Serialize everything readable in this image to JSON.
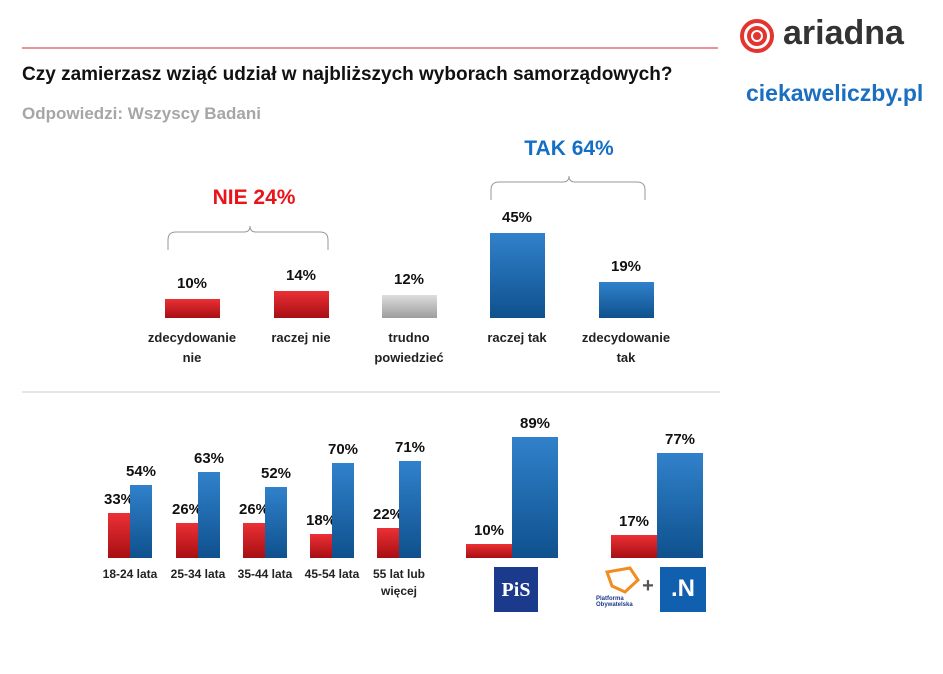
{
  "header": {
    "brand": "ariadna",
    "site": "ciekaweliczby.pl"
  },
  "chart_data": [
    {
      "type": "bar",
      "title": "Czy zamierzasz wziąć udział w najbliższych wyborach samorządowych?",
      "subtitle": "Odpowiedzi: Wszyscy Badani",
      "categories": [
        "zdecydowanie nie",
        "raczej nie",
        "trudno powiedzieć",
        "raczej tak",
        "zdecydowanie tak"
      ],
      "values": [
        10,
        14,
        12,
        45,
        19
      ],
      "value_labels": [
        "10%",
        "14%",
        "12%",
        "45%",
        "19%"
      ],
      "colors": [
        "#e8141a",
        "#e8141a",
        "#d9d9d9",
        "#1470c4",
        "#1470c4"
      ],
      "annotations": [
        {
          "label": "NIE 24%",
          "color": "#e8141a"
        },
        {
          "label": "TAK 64%",
          "color": "#1470c4"
        }
      ]
    },
    {
      "type": "grouped_bar",
      "categories": [
        "18-24 lata",
        "25-34 lata",
        "35-44 lata",
        "45-54 lata",
        "55 lat lub więcej",
        null,
        null
      ],
      "series": [
        {
          "color": "#e8141a",
          "values": [
            33,
            26,
            26,
            18,
            22,
            10,
            17
          ],
          "value_labels": [
            "33%",
            "26%",
            "26%",
            "18%",
            "22%",
            "10%",
            "17%"
          ]
        },
        {
          "color": "#1470c4",
          "values": [
            54,
            63,
            52,
            70,
            71,
            89,
            77
          ],
          "value_labels": [
            "54%",
            "63%",
            "52%",
            "70%",
            "71%",
            "89%",
            "77%"
          ]
        }
      ],
      "logos": [
        "PiS",
        "Platforma Obywatelska",
        ".N"
      ]
    }
  ]
}
